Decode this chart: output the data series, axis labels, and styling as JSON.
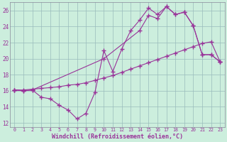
{
  "xlabel": "Windchill (Refroidissement éolien,°C)",
  "bg_color": "#cceedd",
  "line_color": "#993399",
  "grid_color": "#99bbbb",
  "xlim": [
    -0.5,
    23.5
  ],
  "ylim": [
    11.5,
    27.0
  ],
  "yticks": [
    12,
    14,
    16,
    18,
    20,
    22,
    24,
    26
  ],
  "xticks": [
    0,
    1,
    2,
    3,
    4,
    5,
    6,
    7,
    8,
    9,
    10,
    11,
    12,
    13,
    14,
    15,
    16,
    17,
    18,
    19,
    20,
    21,
    22,
    23
  ],
  "line1_x": [
    0,
    1,
    2,
    3,
    4,
    5,
    6,
    7,
    8,
    9,
    10,
    11,
    12,
    13,
    14,
    15,
    16,
    17,
    18,
    19,
    20,
    21,
    22,
    23
  ],
  "line1_y": [
    16.1,
    16.0,
    16.1,
    15.2,
    15.0,
    14.2,
    13.6,
    12.5,
    13.2,
    15.8,
    21.0,
    18.4,
    21.2,
    23.5,
    24.8,
    26.3,
    25.5,
    26.5,
    25.5,
    25.8,
    24.1,
    20.5,
    20.5,
    19.6
  ],
  "line2_x": [
    0,
    1,
    2,
    10,
    14,
    15,
    16,
    17,
    18,
    19,
    20,
    21,
    22,
    23
  ],
  "line2_y": [
    16.1,
    16.0,
    16.1,
    20.0,
    23.5,
    25.4,
    25.0,
    26.5,
    25.5,
    25.8,
    24.1,
    20.5,
    20.5,
    19.6
  ],
  "line3_x": [
    0,
    1,
    2,
    3,
    4,
    5,
    6,
    7,
    8,
    9,
    10,
    11,
    12,
    13,
    14,
    15,
    16,
    17,
    18,
    19,
    20,
    21,
    22,
    23
  ],
  "line3_y": [
    16.1,
    16.1,
    16.2,
    16.3,
    16.4,
    16.5,
    16.7,
    16.8,
    17.0,
    17.3,
    17.6,
    17.9,
    18.3,
    18.7,
    19.1,
    19.5,
    19.9,
    20.3,
    20.7,
    21.1,
    21.5,
    21.9,
    22.1,
    19.6
  ]
}
